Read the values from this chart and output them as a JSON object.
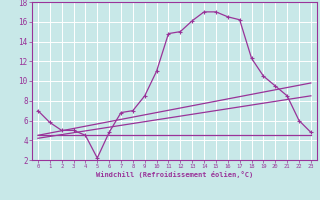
{
  "xlabel": "Windchill (Refroidissement éolien,°C)",
  "bg_color": "#c8e8e8",
  "grid_color": "#ffffff",
  "line_color": "#993399",
  "xlim": [
    -0.5,
    23.5
  ],
  "ylim": [
    2,
    18
  ],
  "yticks": [
    2,
    4,
    6,
    8,
    10,
    12,
    14,
    16,
    18
  ],
  "xticks": [
    0,
    1,
    2,
    3,
    4,
    5,
    6,
    7,
    8,
    9,
    10,
    11,
    12,
    13,
    14,
    15,
    16,
    17,
    18,
    19,
    20,
    21,
    22,
    23
  ],
  "curve1_x": [
    0,
    1,
    2,
    3,
    4,
    5,
    6,
    7,
    8,
    9,
    10,
    11,
    12,
    13,
    14,
    15,
    16,
    17,
    18,
    19,
    20,
    21,
    22,
    23
  ],
  "curve1_y": [
    7.0,
    5.8,
    5.0,
    5.0,
    4.5,
    2.2,
    4.8,
    6.8,
    7.0,
    8.5,
    11.0,
    14.8,
    15.0,
    16.1,
    17.0,
    17.0,
    16.5,
    16.2,
    12.3,
    10.5,
    9.5,
    8.5,
    6.0,
    4.8
  ],
  "curve2_x": [
    0,
    23
  ],
  "curve2_y": [
    4.5,
    4.5
  ],
  "curve3_x": [
    0,
    23
  ],
  "curve3_y": [
    4.5,
    9.8
  ],
  "curve4_x": [
    0,
    23
  ],
  "curve4_y": [
    4.2,
    8.5
  ]
}
